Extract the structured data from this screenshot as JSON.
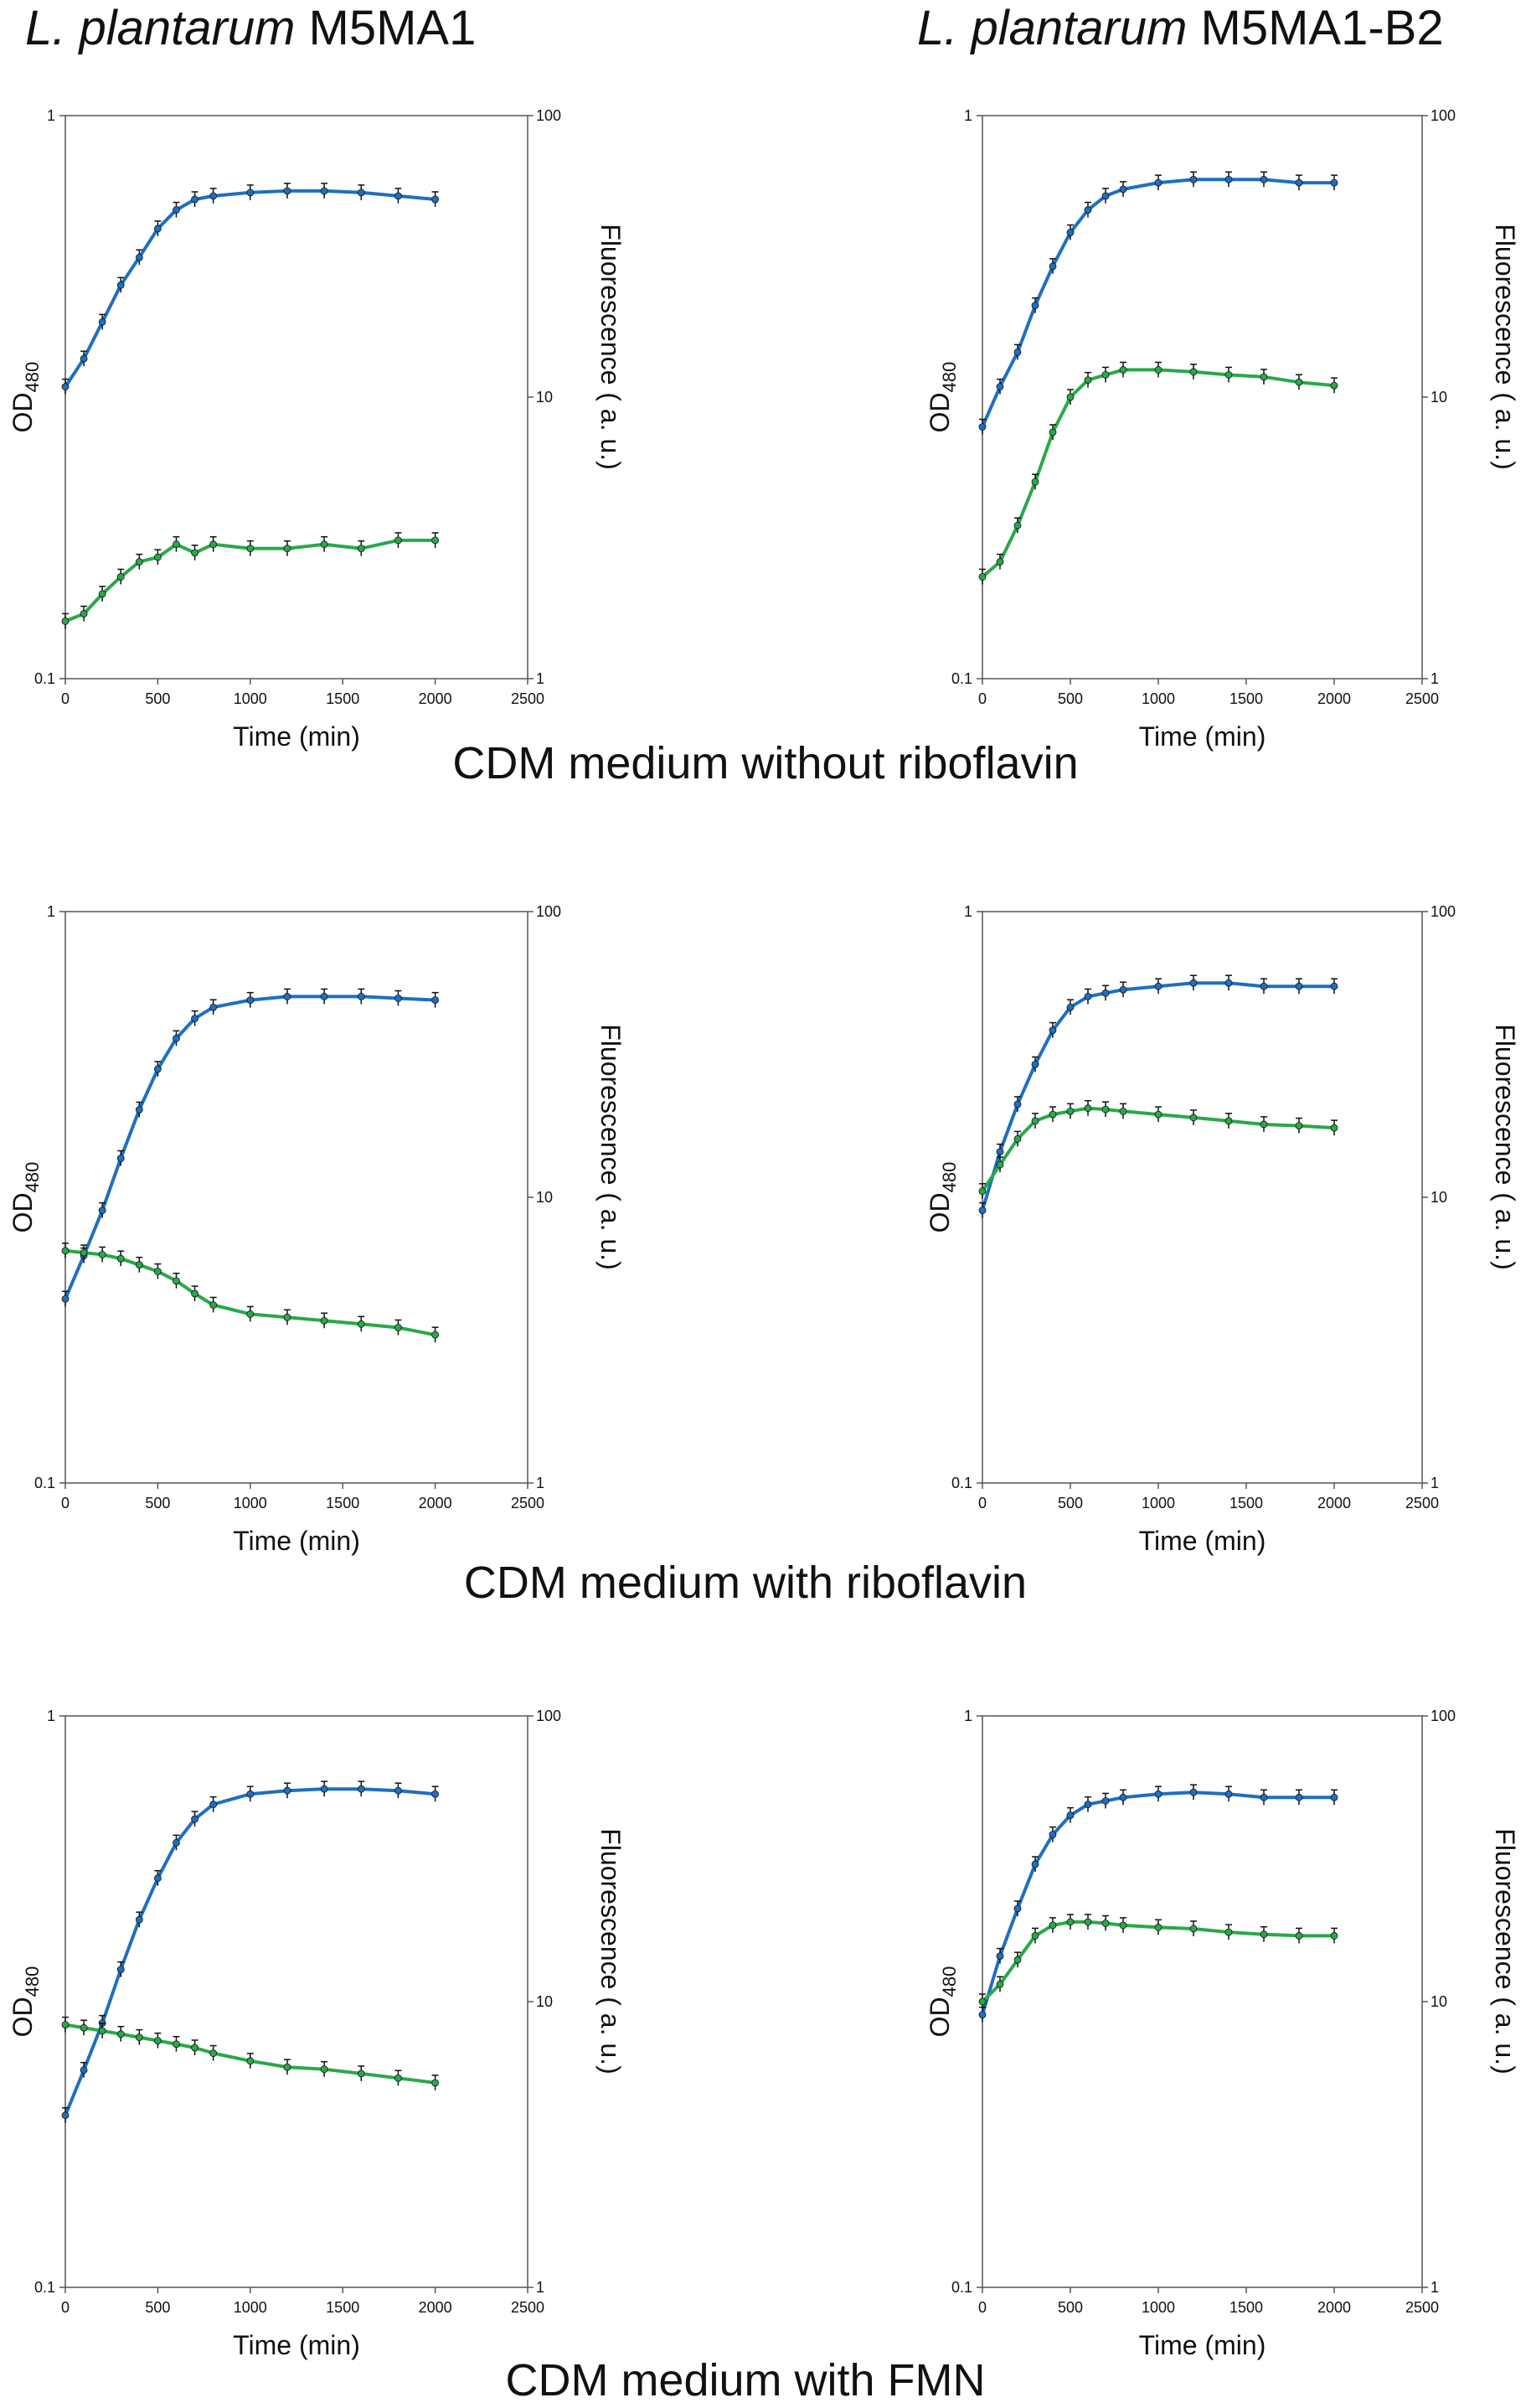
{
  "columns": [
    {
      "italic": "L. plantarum",
      "strain": " M5MA1"
    },
    {
      "italic": "L. plantarum",
      "strain": " M5MA1-B2"
    }
  ],
  "row_titles": [
    "CDM medium without riboflavin",
    "CDM medium with riboflavin",
    "CDM medium with FMN"
  ],
  "colors": {
    "od": "#1f6fc0",
    "fluor": "#2aa84a",
    "error": "#111111",
    "axis": "#555555"
  },
  "chart_data": [
    {
      "type": "line",
      "title": "L. plantarum M5MA1 — CDM medium without riboflavin",
      "xlabel": "Time (min)",
      "ylabel": "OD480",
      "y2label": "Fluorescence ( a. u.)",
      "xlim": [
        0,
        2500
      ],
      "ylim": [
        0.1,
        1
      ],
      "y2lim": [
        1,
        100
      ],
      "yscale": "log",
      "xticks": [
        "0",
        "500",
        "1000",
        "1500",
        "2000",
        "2500"
      ],
      "yticks": [
        "1",
        "0.1"
      ],
      "y2ticks": [
        "100",
        "10",
        "1"
      ],
      "series": [
        {
          "name": "OD480",
          "axis": "left",
          "x": [
            0,
            100,
            200,
            300,
            400,
            500,
            600,
            700,
            800,
            1000,
            1200,
            1400,
            1600,
            1800,
            2000
          ],
          "values": [
            0.33,
            0.37,
            0.43,
            0.5,
            0.56,
            0.63,
            0.68,
            0.71,
            0.72,
            0.73,
            0.735,
            0.735,
            0.73,
            0.72,
            0.71
          ]
        },
        {
          "name": "Fluorescence",
          "axis": "right",
          "x": [
            0,
            100,
            200,
            300,
            400,
            500,
            600,
            700,
            800,
            1000,
            1200,
            1400,
            1600,
            1800,
            2000
          ],
          "values": [
            1.6,
            1.7,
            2.0,
            2.3,
            2.6,
            2.7,
            3.0,
            2.8,
            3.0,
            2.9,
            2.9,
            3.0,
            2.9,
            3.1,
            3.1
          ]
        }
      ]
    },
    {
      "type": "line",
      "title": "L. plantarum M5MA1-B2 — CDM medium without riboflavin",
      "xlabel": "Time (min)",
      "ylabel": "OD480",
      "y2label": "Fluorescence ( a. u.)",
      "xlim": [
        0,
        2500
      ],
      "ylim": [
        0.1,
        1
      ],
      "y2lim": [
        1,
        100
      ],
      "yscale": "log",
      "xticks": [
        "0",
        "500",
        "1000",
        "1500",
        "2000",
        "2500"
      ],
      "yticks": [
        "1",
        "0.1"
      ],
      "y2ticks": [
        "100",
        "10",
        "1"
      ],
      "series": [
        {
          "name": "OD480",
          "axis": "left",
          "x": [
            0,
            100,
            200,
            300,
            400,
            500,
            600,
            700,
            800,
            1000,
            1200,
            1400,
            1600,
            1800,
            2000
          ],
          "values": [
            0.28,
            0.33,
            0.38,
            0.46,
            0.54,
            0.62,
            0.68,
            0.72,
            0.74,
            0.76,
            0.77,
            0.77,
            0.77,
            0.76,
            0.76
          ]
        },
        {
          "name": "Fluorescence",
          "axis": "right",
          "x": [
            0,
            100,
            200,
            300,
            400,
            500,
            600,
            700,
            800,
            1000,
            1200,
            1400,
            1600,
            1800,
            2000
          ],
          "values": [
            2.3,
            2.6,
            3.5,
            5.0,
            7.5,
            10.0,
            11.5,
            12.0,
            12.5,
            12.5,
            12.3,
            12.0,
            11.8,
            11.3,
            11.0
          ]
        }
      ]
    },
    {
      "type": "line",
      "title": "L. plantarum M5MA1 — CDM medium with riboflavin",
      "xlabel": "Time (min)",
      "ylabel": "OD480",
      "y2label": "Fluorescence ( a. u.)",
      "xlim": [
        0,
        2500
      ],
      "ylim": [
        0.1,
        1
      ],
      "y2lim": [
        1,
        100
      ],
      "yscale": "log",
      "xticks": [
        "0",
        "500",
        "1000",
        "1500",
        "2000",
        "2500"
      ],
      "yticks": [
        "1",
        "0.1"
      ],
      "y2ticks": [
        "100",
        "10",
        "1"
      ],
      "series": [
        {
          "name": "OD480",
          "axis": "left",
          "x": [
            0,
            100,
            200,
            300,
            400,
            500,
            600,
            700,
            800,
            1000,
            1200,
            1400,
            1600,
            1800,
            2000
          ],
          "values": [
            0.21,
            0.25,
            0.3,
            0.37,
            0.45,
            0.53,
            0.6,
            0.65,
            0.68,
            0.7,
            0.71,
            0.71,
            0.71,
            0.705,
            0.7
          ]
        },
        {
          "name": "Fluorescence",
          "axis": "right",
          "x": [
            0,
            100,
            200,
            300,
            400,
            500,
            600,
            700,
            800,
            1000,
            1200,
            1400,
            1600,
            1800,
            2000
          ],
          "values": [
            6.5,
            6.4,
            6.3,
            6.1,
            5.8,
            5.5,
            5.1,
            4.6,
            4.2,
            3.9,
            3.8,
            3.7,
            3.6,
            3.5,
            3.3
          ]
        }
      ]
    },
    {
      "type": "line",
      "title": "L. plantarum M5MA1-B2 — CDM medium with riboflavin",
      "xlabel": "Time (min)",
      "ylabel": "OD480",
      "y2label": "Fluorescence ( a. u.)",
      "xlim": [
        0,
        2500
      ],
      "ylim": [
        0.1,
        1
      ],
      "y2lim": [
        1,
        100
      ],
      "yscale": "log",
      "xticks": [
        "0",
        "500",
        "1000",
        "1500",
        "2000",
        "2500"
      ],
      "yticks": [
        "1",
        "0.1"
      ],
      "y2ticks": [
        "100",
        "10",
        "1"
      ],
      "series": [
        {
          "name": "OD480",
          "axis": "left",
          "x": [
            0,
            100,
            200,
            300,
            400,
            500,
            600,
            700,
            800,
            1000,
            1200,
            1400,
            1600,
            1800,
            2000
          ],
          "values": [
            0.3,
            0.38,
            0.46,
            0.54,
            0.62,
            0.68,
            0.71,
            0.72,
            0.73,
            0.74,
            0.75,
            0.75,
            0.74,
            0.74,
            0.74
          ]
        },
        {
          "name": "Fluorescence",
          "axis": "right",
          "x": [
            0,
            100,
            200,
            300,
            400,
            500,
            600,
            700,
            800,
            1000,
            1200,
            1400,
            1600,
            1800,
            2000
          ],
          "values": [
            10.5,
            13.0,
            16.0,
            18.5,
            19.5,
            20.0,
            20.5,
            20.3,
            20.0,
            19.5,
            19.0,
            18.5,
            18.0,
            17.8,
            17.5
          ]
        }
      ]
    },
    {
      "type": "line",
      "title": "L. plantarum M5MA1 — CDM medium with FMN",
      "xlabel": "Time (min)",
      "ylabel": "OD480",
      "y2label": "Fluorescence ( a. u.)",
      "xlim": [
        0,
        2500
      ],
      "ylim": [
        0.1,
        1
      ],
      "y2lim": [
        1,
        100
      ],
      "yscale": "log",
      "xticks": [
        "0",
        "500",
        "1000",
        "1500",
        "2000",
        "2500"
      ],
      "yticks": [
        "1",
        "0.1"
      ],
      "y2ticks": [
        "100",
        "10",
        "1"
      ],
      "series": [
        {
          "name": "OD480",
          "axis": "left",
          "x": [
            0,
            100,
            200,
            300,
            400,
            500,
            600,
            700,
            800,
            1000,
            1200,
            1400,
            1600,
            1800,
            2000
          ],
          "values": [
            0.2,
            0.24,
            0.29,
            0.36,
            0.44,
            0.52,
            0.6,
            0.66,
            0.7,
            0.73,
            0.74,
            0.745,
            0.745,
            0.74,
            0.73
          ]
        },
        {
          "name": "Fluorescence",
          "axis": "right",
          "x": [
            0,
            100,
            200,
            300,
            400,
            500,
            600,
            700,
            800,
            1000,
            1200,
            1400,
            1600,
            1800,
            2000
          ],
          "values": [
            8.3,
            8.1,
            7.9,
            7.7,
            7.5,
            7.3,
            7.1,
            6.9,
            6.6,
            6.2,
            5.9,
            5.8,
            5.6,
            5.4,
            5.2
          ]
        }
      ]
    },
    {
      "type": "line",
      "title": "L. plantarum M5MA1-B2 — CDM medium with FMN",
      "xlabel": "Time (min)",
      "ylabel": "OD480",
      "y2label": "Fluorescence ( a. u.)",
      "xlim": [
        0,
        2500
      ],
      "ylim": [
        0.1,
        1
      ],
      "y2lim": [
        1,
        100
      ],
      "yscale": "log",
      "xticks": [
        "0",
        "500",
        "1000",
        "1500",
        "2000",
        "2500"
      ],
      "yticks": [
        "1",
        "0.1"
      ],
      "y2ticks": [
        "100",
        "10",
        "1"
      ],
      "series": [
        {
          "name": "OD480",
          "axis": "left",
          "x": [
            0,
            100,
            200,
            300,
            400,
            500,
            600,
            700,
            800,
            1000,
            1200,
            1400,
            1600,
            1800,
            2000
          ],
          "values": [
            0.3,
            0.38,
            0.46,
            0.55,
            0.62,
            0.67,
            0.7,
            0.71,
            0.72,
            0.73,
            0.735,
            0.73,
            0.72,
            0.72,
            0.72
          ]
        },
        {
          "name": "Fluorescence",
          "axis": "right",
          "x": [
            0,
            100,
            200,
            300,
            400,
            500,
            600,
            700,
            800,
            1000,
            1200,
            1400,
            1600,
            1800,
            2000
          ],
          "values": [
            10.0,
            11.5,
            14.0,
            17.0,
            18.5,
            19.0,
            19.0,
            18.8,
            18.5,
            18.2,
            18.0,
            17.5,
            17.2,
            17.0,
            17.0
          ]
        }
      ]
    }
  ]
}
